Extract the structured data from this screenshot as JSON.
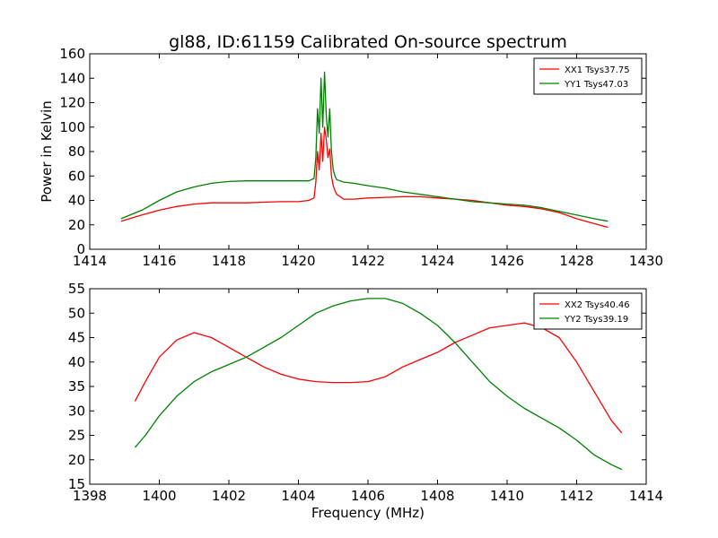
{
  "chart_data": [
    {
      "type": "line",
      "title": "gl88, ID:61159 Calibrated On-source spectrum",
      "xlabel": "",
      "ylabel": "Power in Kelvin",
      "xlim": [
        1414,
        1430
      ],
      "ylim": [
        0,
        160
      ],
      "xticks": [
        1414,
        1416,
        1418,
        1420,
        1422,
        1424,
        1426,
        1428,
        1430
      ],
      "yticks": [
        0,
        20,
        40,
        60,
        80,
        100,
        120,
        140,
        160
      ],
      "legend_position": "top-right",
      "series": [
        {
          "name": "XX1 Tsys37.75",
          "color": "#ff0000",
          "x": [
            1414.9,
            1415.5,
            1416.0,
            1416.5,
            1417.0,
            1417.5,
            1418.0,
            1418.5,
            1419.0,
            1419.5,
            1420.0,
            1420.3,
            1420.45,
            1420.5,
            1420.55,
            1420.6,
            1420.65,
            1420.7,
            1420.75,
            1420.8,
            1420.85,
            1420.9,
            1420.95,
            1421.0,
            1421.05,
            1421.1,
            1421.3,
            1421.6,
            1422.0,
            1422.5,
            1423.0,
            1423.5,
            1424.0,
            1424.5,
            1425.0,
            1425.5,
            1426.0,
            1426.5,
            1427.0,
            1427.5,
            1428.0,
            1428.5,
            1428.9
          ],
          "y": [
            23,
            28,
            32,
            35,
            37,
            38,
            38,
            38,
            38.5,
            39,
            39,
            40,
            42,
            55,
            80,
            65,
            95,
            72,
            100,
            90,
            75,
            82,
            60,
            52,
            48,
            45,
            41,
            41,
            42,
            42.5,
            43,
            43,
            42,
            41,
            40,
            38,
            36,
            35,
            33,
            30,
            25,
            21,
            18
          ]
        },
        {
          "name": "YY1 Tsys47.03",
          "color": "#008000",
          "x": [
            1414.9,
            1415.5,
            1416.0,
            1416.5,
            1417.0,
            1417.5,
            1418.0,
            1418.5,
            1419.0,
            1419.5,
            1420.0,
            1420.3,
            1420.45,
            1420.5,
            1420.55,
            1420.6,
            1420.65,
            1420.7,
            1420.75,
            1420.8,
            1420.85,
            1420.9,
            1420.95,
            1421.0,
            1421.05,
            1421.1,
            1421.3,
            1421.6,
            1422.0,
            1422.5,
            1423.0,
            1423.5,
            1424.0,
            1424.5,
            1425.0,
            1425.5,
            1426.0,
            1426.5,
            1427.0,
            1427.5,
            1428.0,
            1428.5,
            1428.9
          ],
          "y": [
            25,
            32,
            40,
            47,
            51,
            54,
            55.5,
            56,
            56,
            56,
            56,
            56,
            58,
            75,
            115,
            95,
            140,
            100,
            145,
            110,
            92,
            115,
            80,
            65,
            60,
            57,
            55,
            54,
            52,
            50,
            47,
            45,
            43,
            41,
            39,
            38,
            37,
            36,
            34,
            31,
            28,
            25,
            23
          ]
        }
      ]
    },
    {
      "type": "line",
      "title": "",
      "xlabel": "Frequency (MHz)",
      "ylabel": "",
      "xlim": [
        1398,
        1414
      ],
      "ylim": [
        15,
        55
      ],
      "xticks": [
        1398,
        1400,
        1402,
        1404,
        1406,
        1408,
        1410,
        1412,
        1414
      ],
      "yticks": [
        15,
        20,
        25,
        30,
        35,
        40,
        45,
        50,
        55
      ],
      "legend_position": "top-right",
      "series": [
        {
          "name": "XX2 Tsys40.46",
          "color": "#ff0000",
          "x": [
            1399.3,
            1399.6,
            1400.0,
            1400.5,
            1401.0,
            1401.5,
            1402.0,
            1402.5,
            1403.0,
            1403.5,
            1404.0,
            1404.5,
            1405.0,
            1405.5,
            1406.0,
            1406.5,
            1407.0,
            1407.5,
            1408.0,
            1408.5,
            1409.0,
            1409.5,
            1410.0,
            1410.5,
            1411.0,
            1411.5,
            1412.0,
            1412.5,
            1413.0,
            1413.3
          ],
          "y": [
            32,
            36,
            41,
            44.5,
            46,
            45,
            43,
            41,
            39,
            37.5,
            36.5,
            36,
            35.8,
            35.8,
            36,
            37,
            39,
            40.5,
            42,
            44,
            45.5,
            47,
            47.5,
            48,
            47,
            45,
            40,
            34,
            28,
            25.5
          ]
        },
        {
          "name": "YY2 Tsys39.19",
          "color": "#008000",
          "x": [
            1399.3,
            1399.6,
            1400.0,
            1400.5,
            1401.0,
            1401.5,
            1402.0,
            1402.5,
            1403.0,
            1403.5,
            1404.0,
            1404.5,
            1405.0,
            1405.5,
            1406.0,
            1406.5,
            1407.0,
            1407.5,
            1408.0,
            1408.5,
            1409.0,
            1409.5,
            1410.0,
            1410.5,
            1411.0,
            1411.5,
            1412.0,
            1412.5,
            1413.0,
            1413.3
          ],
          "y": [
            22.5,
            25,
            29,
            33,
            36,
            38,
            39.5,
            41,
            43,
            45,
            47.5,
            50,
            51.5,
            52.5,
            53,
            53,
            52,
            50,
            47.5,
            44,
            40,
            36,
            33,
            30.5,
            28.5,
            26.5,
            24,
            21,
            19,
            18
          ]
        }
      ]
    }
  ]
}
